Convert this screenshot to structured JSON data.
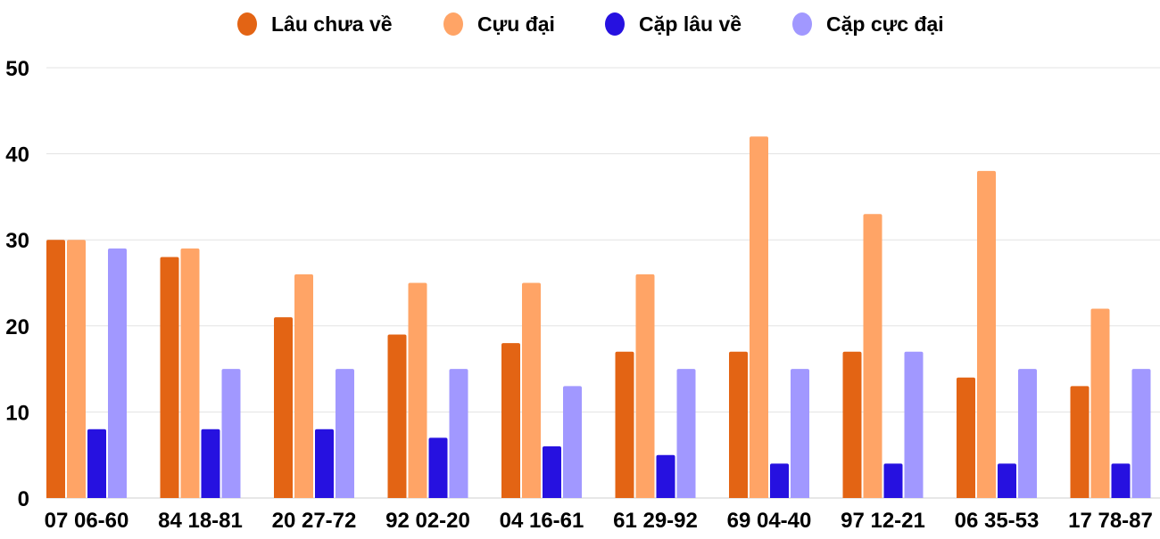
{
  "chart_data": {
    "type": "bar",
    "title": "",
    "xlabel": "",
    "ylabel": "",
    "ylim": [
      0,
      50
    ],
    "yticks": [
      0,
      10,
      20,
      30,
      40,
      50
    ],
    "grid": true,
    "legend_placement": "top",
    "categories": [
      "07 06-60",
      "84 18-81",
      "20 27-72",
      "92 02-20",
      "04 16-61",
      "61 29-92",
      "69 04-40",
      "97 12-21",
      "06 35-53",
      "17 78-87"
    ],
    "series": [
      {
        "name": "Lâu chưa về",
        "color": "#E36414",
        "values": [
          30,
          28,
          21,
          19,
          18,
          17,
          17,
          17,
          14,
          13
        ]
      },
      {
        "name": "Cựu đại",
        "color": "#FFA466",
        "values": [
          30,
          29,
          26,
          25,
          25,
          26,
          42,
          33,
          38,
          22
        ]
      },
      {
        "name": "Cặp lâu về",
        "color": "#2611E0",
        "values": [
          8,
          8,
          8,
          7,
          6,
          5,
          4,
          4,
          4,
          4
        ]
      },
      {
        "name": "Cặp cực đại",
        "color": "#A198FF",
        "values": [
          29,
          15,
          15,
          15,
          13,
          15,
          15,
          17,
          15,
          15
        ]
      }
    ]
  }
}
